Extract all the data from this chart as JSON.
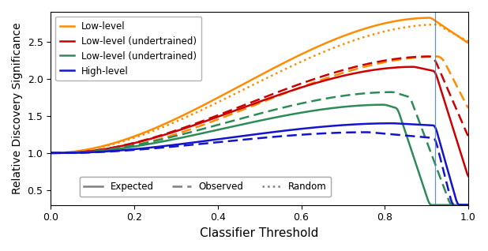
{
  "title": "",
  "xlabel": "Classifier Threshold",
  "ylabel": "Relative Discovery Significance",
  "xlim": [
    0.0,
    1.0
  ],
  "ylim": [
    0.3,
    2.9
  ],
  "vline_x": 0.92,
  "colors": {
    "orange": "#FF8C00",
    "red": "#CC0000",
    "green": "#2E8B57",
    "blue": "#1414CC"
  },
  "legend1_labels": [
    "Low-level",
    "Low-level (undertrained)",
    "Low-level (undertrained)",
    "High-level"
  ],
  "legend2_labels": [
    "Expected",
    "Observed",
    "Random"
  ]
}
